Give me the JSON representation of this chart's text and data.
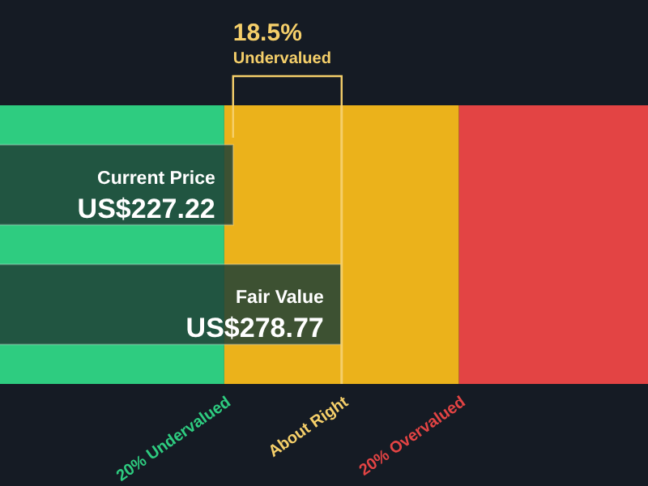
{
  "chart_data": {
    "type": "bar",
    "orientation": "horizontal",
    "categories": [
      "Current Price",
      "Fair Value"
    ],
    "values": [
      227.22,
      278.77
    ],
    "value_labels": [
      "US$227.22",
      "US$278.77"
    ],
    "color": "#1e3f36",
    "xlim": [
      116.5,
      424.3
    ],
    "bands": [
      {
        "axis": "x",
        "from": 116.5,
        "to": 223.02,
        "label": "20% Undervalued",
        "color": "#2ecc80"
      },
      {
        "axis": "x",
        "from": 223.02,
        "to": 334.52,
        "color": "#ebb21b"
      },
      {
        "axis": "x",
        "from": 334.52,
        "to": 424.3,
        "label": "20% Overvalued",
        "color": "#e34444"
      }
    ],
    "ref_lines": [
      {
        "axis": "x",
        "value": 278.77,
        "label": "About Right",
        "color": "#f5cf6a"
      }
    ],
    "annotations": [
      "18.5%",
      "Undervalued"
    ]
  }
}
